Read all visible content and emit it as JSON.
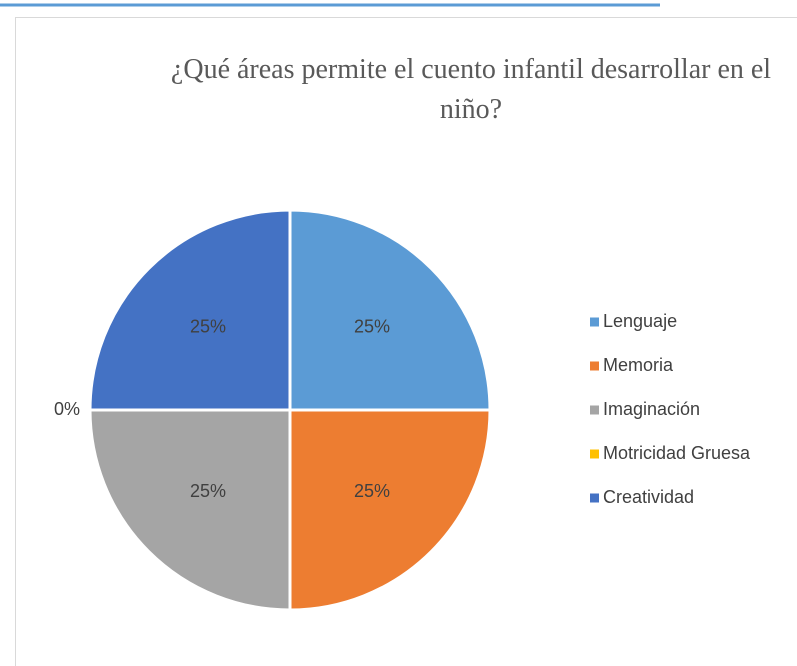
{
  "chart_data": {
    "type": "pie",
    "title": "¿Qué áreas permite el cuento infantil desarrollar en el niño?",
    "categories": [
      "Lenguaje",
      "Memoria",
      "Imaginación",
      "Motricidad Gruesa",
      "Creatividad"
    ],
    "values": [
      25,
      25,
      25,
      0,
      25
    ],
    "value_labels": [
      "25%",
      "25%",
      "25%",
      "0%",
      "25%"
    ],
    "colors": [
      "#5b9bd5",
      "#ed7d31",
      "#a5a5a5",
      "#ffc000",
      "#4472c4"
    ],
    "legend": "right"
  }
}
